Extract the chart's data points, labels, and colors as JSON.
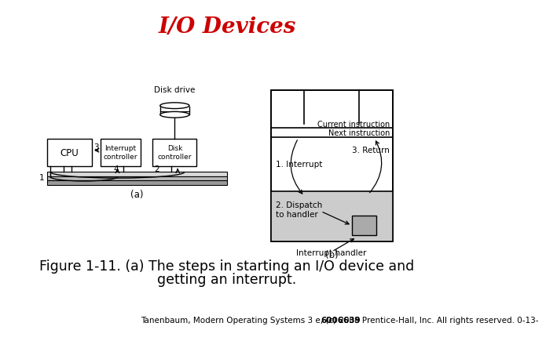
{
  "title": "I/O Devices",
  "title_color": "#cc0000",
  "title_fontsize": 20,
  "caption_line1": "Figure 1-11. (a) The steps in starting an I/O device and",
  "caption_line2": "getting an interrupt.",
  "caption_fontsize": 12.5,
  "footer_text": "Tanenbaum, Modern Operating Systems 3 e, (c) 2008 Prentice-Hall, Inc. All rights reserved. 0-13-",
  "footer_bold": "6006639",
  "footer_fontsize": 7.5,
  "bg_color": "#ffffff",
  "diagram_a_label": "(a)",
  "diagram_b_label": "(b)"
}
